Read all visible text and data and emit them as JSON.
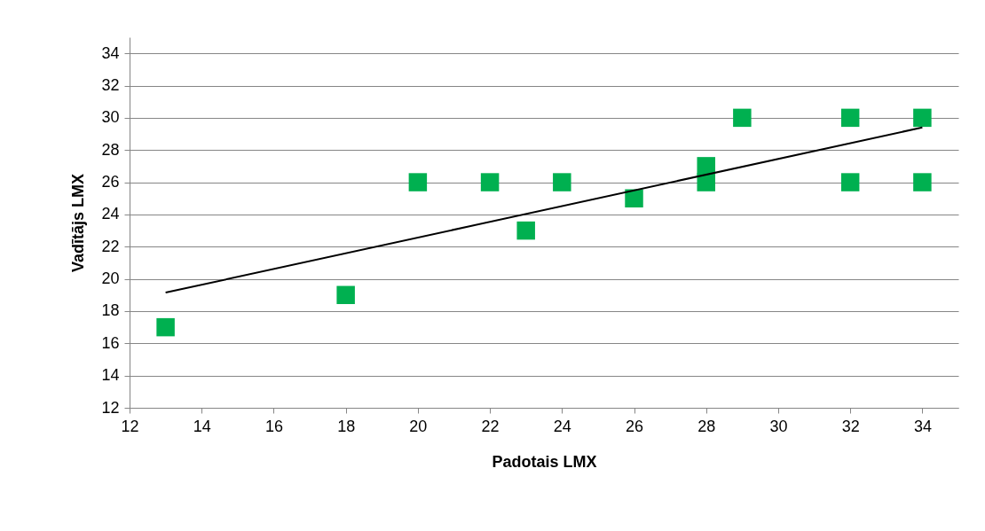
{
  "chart_data": {
    "type": "scatter",
    "xlabel": "Padotais LMX",
    "ylabel": "Vadītājs LMX",
    "series": [
      {
        "color": "#00b050",
        "marker": "square",
        "x": [
          13,
          18,
          20,
          22,
          23,
          24,
          26,
          28,
          28,
          29,
          32,
          32,
          34,
          34
        ],
        "values": [
          17,
          19,
          26,
          26,
          23,
          26,
          25,
          27,
          26,
          30,
          30,
          26,
          30,
          26
        ]
      },
      {
        "type": "line",
        "color": "#000000",
        "x": [
          13,
          34
        ],
        "values": [
          19.15,
          29.4
        ]
      }
    ],
    "xlim": [
      12,
      35
    ],
    "xticks": [
      12,
      14,
      16,
      18,
      20,
      22,
      24,
      26,
      28,
      30,
      32,
      34
    ],
    "ylim": [
      12,
      35
    ],
    "yticks": [
      12,
      14,
      16,
      18,
      20,
      22,
      24,
      26,
      28,
      30,
      32,
      34
    ],
    "grid": "y",
    "legend": false
  }
}
